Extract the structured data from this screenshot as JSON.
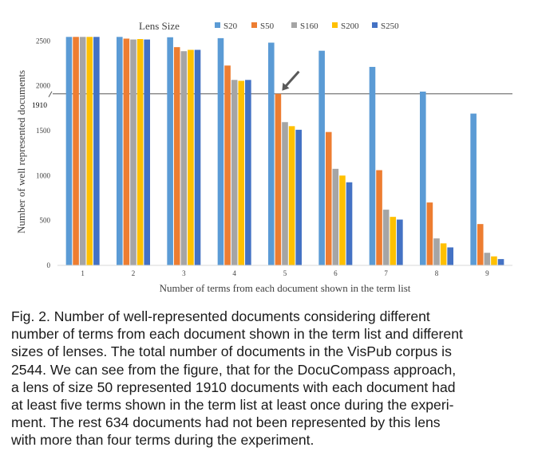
{
  "chart_data": {
    "type": "bar",
    "legend_title": "Lens Size",
    "legend_position": "top",
    "categories": [
      "1",
      "2",
      "3",
      "4",
      "5",
      "6",
      "7",
      "8",
      "9"
    ],
    "series": [
      {
        "name": "S20",
        "color": "#5b9bd5",
        "values": [
          2544,
          2544,
          2540,
          2530,
          2480,
          2390,
          2210,
          1935,
          1690
        ]
      },
      {
        "name": "S50",
        "color": "#ed7d31",
        "values": [
          2544,
          2525,
          2430,
          2225,
          1910,
          1485,
          1060,
          700,
          460
        ]
      },
      {
        "name": "S160",
        "color": "#a5a5a5",
        "values": [
          2544,
          2515,
          2385,
          2065,
          1595,
          1075,
          620,
          300,
          140
        ]
      },
      {
        "name": "S200",
        "color": "#ffc000",
        "values": [
          2544,
          2520,
          2400,
          2055,
          1550,
          1000,
          540,
          245,
          100
        ]
      },
      {
        "name": "S250",
        "color": "#4472c4",
        "values": [
          2544,
          2515,
          2400,
          2065,
          1510,
          925,
          510,
          200,
          70
        ]
      }
    ],
    "xlabel": "Number of terms from each document shown in the term list",
    "ylabel": "Number of well represented documents",
    "ylim": [
      0,
      2600
    ],
    "yticks": [
      "0",
      "500",
      "1000",
      "1500",
      "2000",
      "2500"
    ],
    "grid": false,
    "reference_line": {
      "value": 1910,
      "label": "1910",
      "color": "#595959"
    },
    "arrow_annotation": {
      "category": "5",
      "series": "S50",
      "color": "#595959"
    }
  },
  "caption": {
    "lines": [
      "Fig. 2. Number of well-represented documents considering different",
      "number of terms from each document shown in the term list and different",
      "sizes of lenses. The total number of documents in the VisPub corpus is",
      "2544. We can see from the figure, that for the DocuCompass approach,",
      "a lens of size 50 represented 1910 documents with each document had",
      "at least five terms shown in the term list at least once during the experi-",
      "ment. The rest 634 documents had not been represented by this lens",
      "with more than four terms during the experiment."
    ]
  }
}
